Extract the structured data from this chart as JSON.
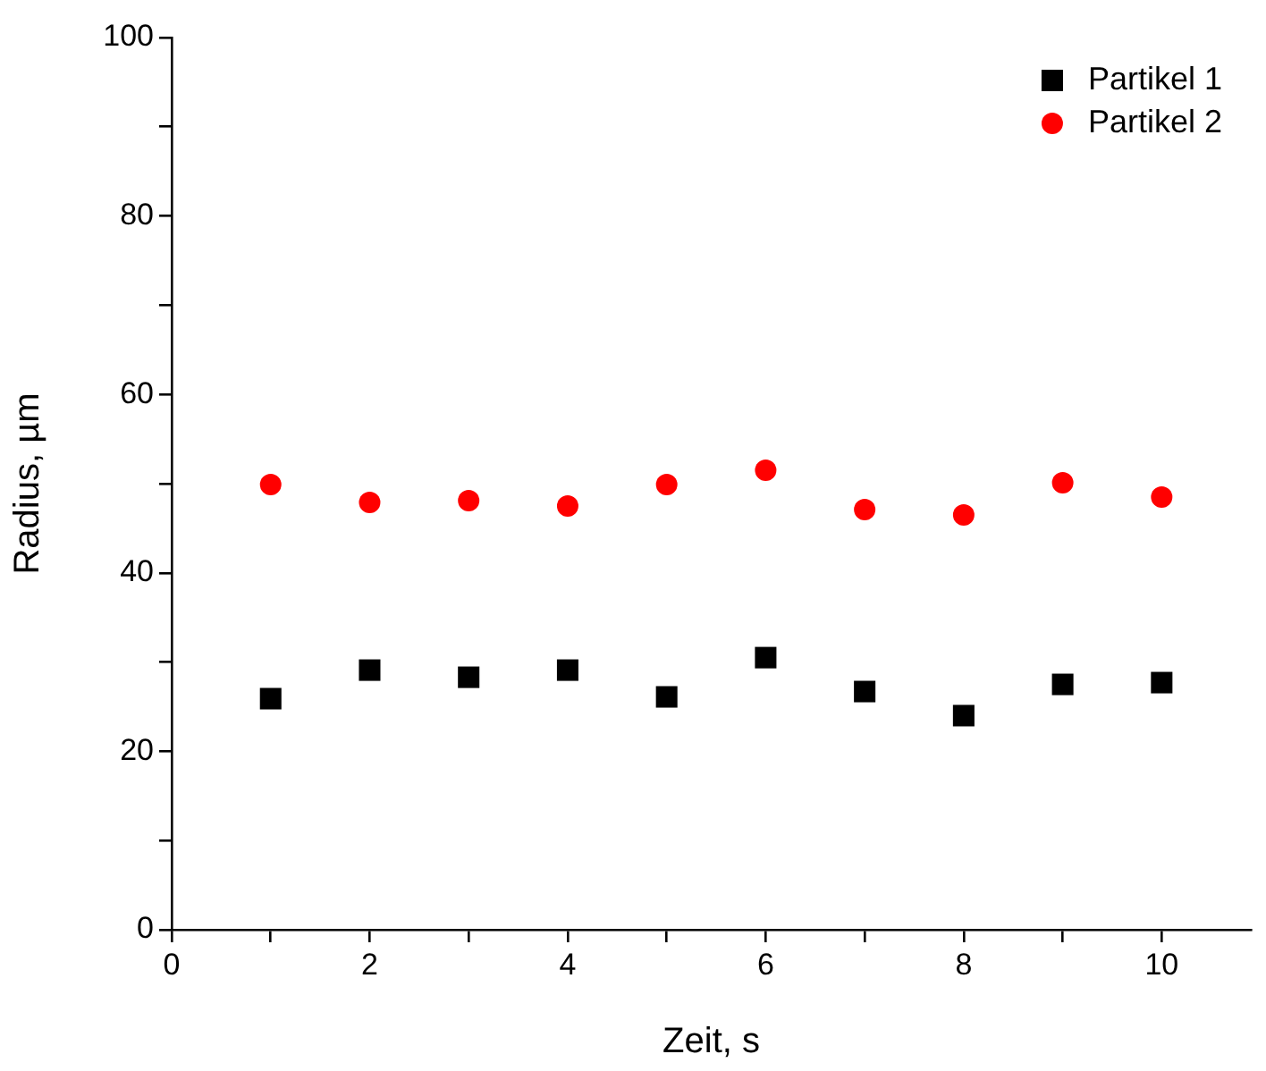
{
  "chart_data": {
    "type": "scatter",
    "xlabel": "Zeit, s",
    "ylabel": "Radius, µm",
    "x": [
      1,
      2,
      3,
      4,
      5,
      6,
      7,
      8,
      9,
      10
    ],
    "series": [
      {
        "name": "Partikel 1",
        "color": "#000000",
        "marker": "square",
        "values": [
          25.9,
          29.1,
          28.3,
          29.1,
          26.1,
          30.5,
          26.7,
          24.0,
          27.5,
          27.7
        ]
      },
      {
        "name": "Partikel 2",
        "color": "#ff0000",
        "marker": "circle",
        "values": [
          49.9,
          47.9,
          48.1,
          47.5,
          49.9,
          51.5,
          47.1,
          46.5,
          50.1,
          48.5
        ]
      }
    ],
    "xlim": [
      0,
      10.9
    ],
    "xticks": [
      0,
      {
        "value": 1,
        "label": null
      },
      2,
      {
        "value": 3,
        "label": null
      },
      4,
      {
        "value": 5,
        "label": null
      },
      6,
      {
        "value": 7,
        "label": null
      },
      8,
      {
        "value": 9,
        "label": null
      },
      10
    ],
    "ylim": [
      0,
      100
    ],
    "yticks": [
      0,
      {
        "value": 10,
        "label": null
      },
      20,
      {
        "value": 30,
        "label": null
      },
      40,
      {
        "value": 50,
        "label": null
      },
      60,
      {
        "value": 70,
        "label": null
      },
      80,
      {
        "value": 90,
        "label": null
      },
      100
    ],
    "grid": false,
    "legend": "top right"
  }
}
